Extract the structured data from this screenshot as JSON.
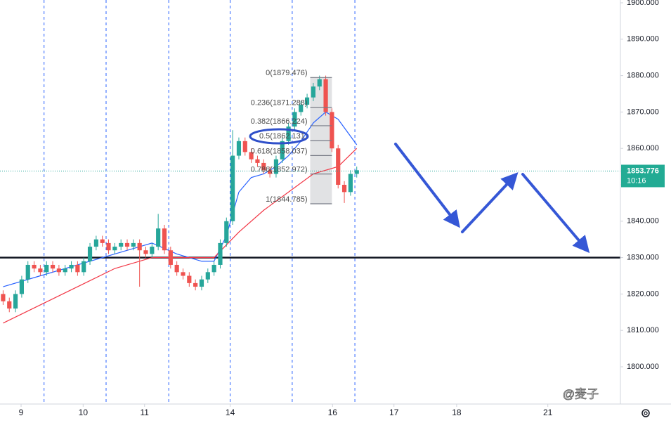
{
  "chart_data": {
    "type": "candlestick",
    "xlim": [
      -0.5,
      99.5
    ],
    "ylim": [
      1789.77,
      1900.77
    ],
    "yticks": [
      {
        "value": 1800,
        "label": "1800.000"
      },
      {
        "value": 1810,
        "label": "1810.000"
      },
      {
        "value": 1820,
        "label": "1820.000"
      },
      {
        "value": 1830,
        "label": "1830.000"
      },
      {
        "value": 1840,
        "label": "1840.000"
      },
      {
        "value": 1850,
        "label": "1850.000"
      },
      {
        "value": 1860,
        "label": "1860.000"
      },
      {
        "value": 1870,
        "label": "1870.000"
      },
      {
        "value": 1880,
        "label": "1880.000"
      },
      {
        "value": 1890,
        "label": "1890.000"
      },
      {
        "value": 1900,
        "label": "1900.000"
      }
    ],
    "xticks": [
      {
        "value": 2.9,
        "label": "9"
      },
      {
        "value": 12.9,
        "label": "10"
      },
      {
        "value": 22.8,
        "label": "11"
      },
      {
        "value": 36.6,
        "label": "14"
      },
      {
        "value": 53.1,
        "label": "16"
      },
      {
        "value": 63.0,
        "label": "17"
      },
      {
        "value": 73.1,
        "label": "18"
      },
      {
        "value": 87.8,
        "label": "21"
      }
    ],
    "session_lines": [
      6.6,
      16.6,
      26.7,
      36.6,
      46.6,
      56.7
    ],
    "up_color": "#26a69a",
    "down_color": "#ef5350",
    "open": [
      1820,
      1818,
      1816,
      1820,
      1824,
      1828,
      1827,
      1826,
      1828,
      1827,
      1826,
      1827,
      1828,
      1826,
      1829,
      1833,
      1835,
      1834,
      1832,
      1833,
      1834,
      1833,
      1834,
      1832,
      1831,
      1833,
      1838,
      1832,
      1828,
      1826,
      1825,
      1823,
      1822,
      1824,
      1826,
      1828,
      1834,
      1840,
      1858,
      1862,
      1859,
      1857,
      1856,
      1854,
      1853,
      1857,
      1862,
      1866,
      1870,
      1872,
      1874,
      1877,
      1879,
      1870,
      1860,
      1850,
      1848,
      1853
    ],
    "high": [
      1821,
      1819,
      1821,
      1825,
      1829,
      1829,
      1828,
      1829,
      1829,
      1828,
      1828,
      1829,
      1829,
      1830,
      1834,
      1836,
      1836,
      1835,
      1834,
      1835,
      1835,
      1835,
      1835,
      1833,
      1834,
      1842,
      1839,
      1833,
      1829,
      1827,
      1826,
      1824,
      1825,
      1827,
      1829,
      1835,
      1841,
      1865,
      1863,
      1863,
      1860,
      1858,
      1857,
      1855,
      1858,
      1863,
      1867,
      1871,
      1873,
      1875,
      1878,
      1880,
      1880,
      1871,
      1861,
      1851,
      1854,
      1855
    ],
    "low": [
      1817,
      1815,
      1815,
      1819,
      1823,
      1826,
      1825,
      1825,
      1826,
      1825,
      1825,
      1826,
      1825,
      1825,
      1828,
      1832,
      1833,
      1831,
      1831,
      1832,
      1832,
      1832,
      1822,
      1830,
      1830,
      1832,
      1831,
      1827,
      1825,
      1824,
      1822,
      1821,
      1821,
      1823,
      1825,
      1827,
      1833,
      1839,
      1857,
      1858,
      1856,
      1855,
      1853,
      1852,
      1852,
      1856,
      1861,
      1865,
      1869,
      1871,
      1873,
      1876,
      1869,
      1859,
      1849,
      1845,
      1847,
      1852
    ],
    "close": [
      1818,
      1816,
      1820,
      1824,
      1828,
      1827,
      1826,
      1828,
      1827,
      1826,
      1827,
      1828,
      1826,
      1829,
      1833,
      1835,
      1834,
      1832,
      1833,
      1834,
      1833,
      1834,
      1832,
      1831,
      1833,
      1838,
      1832,
      1828,
      1826,
      1825,
      1823,
      1822,
      1824,
      1826,
      1828,
      1834,
      1840,
      1858,
      1862,
      1859,
      1857,
      1856,
      1854,
      1853,
      1857,
      1862,
      1866,
      1870,
      1872,
      1874,
      1877,
      1879,
      1870,
      1860,
      1850,
      1848,
      1853,
      1854
    ],
    "ma_lines": [
      {
        "color": "#2962ff",
        "x": [
          0,
          6,
          12,
          18,
          24,
          28,
          32,
          34,
          36,
          38,
          40,
          42,
          44,
          46,
          48,
          50,
          52,
          54,
          57
        ],
        "values": [
          1822,
          1825,
          1828,
          1831,
          1834,
          1831,
          1829,
          1829,
          1836,
          1848,
          1852,
          1853,
          1855,
          1858,
          1862,
          1867,
          1870,
          1868,
          1861
        ]
      },
      {
        "color": "#f23645",
        "x": [
          0,
          6,
          12,
          18,
          24,
          30,
          34,
          38,
          42,
          46,
          50,
          54,
          57
        ],
        "values": [
          1812,
          1817,
          1822,
          1827,
          1830,
          1830,
          1830,
          1837,
          1843,
          1848,
          1853,
          1855,
          1860
        ]
      }
    ],
    "fib_x": [
      49.5,
      53.0
    ],
    "fib_levels": [
      {
        "value": 1879.476,
        "label": "0(1879.476)"
      },
      {
        "value": 1871.288,
        "label": "0.236(1871.288)"
      },
      {
        "value": 1866.224,
        "label": "0.382(1866.224)"
      },
      {
        "value": 1862.131,
        "label": "0.5(1862.131)"
      },
      {
        "value": 1858.037,
        "label": "0.618(1858.037)"
      },
      {
        "value": 1852.972,
        "label": "0.786(1852.972)"
      },
      {
        "value": 1844.785,
        "label": "1(1844.785)"
      }
    ],
    "hline": 1830,
    "last_price": 1853.776,
    "countdown": "10:16",
    "watermark": "@麦子"
  }
}
